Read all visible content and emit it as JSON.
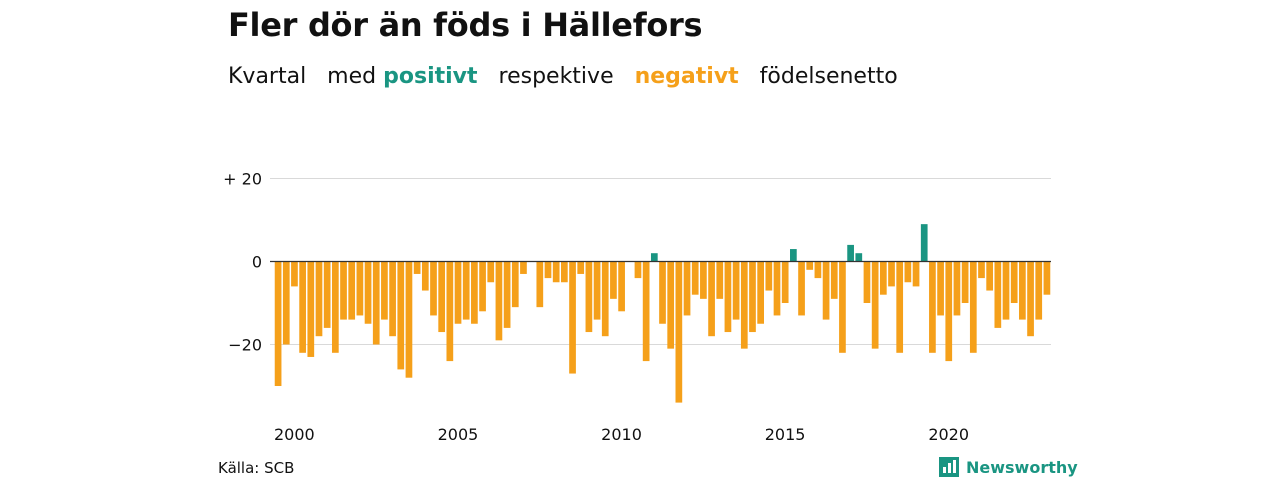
{
  "title": "Fler dör än föds i Hällefors",
  "subtitle": {
    "part1": "Kvartal   med ",
    "positive": "positivt",
    "part2": "   respektive   ",
    "negative": "negativt",
    "part3": "   födelsenetto"
  },
  "source": "Källa: SCB",
  "brand": "Newsworthy",
  "colors": {
    "positive": "#1a9582",
    "negative": "#f5a01a",
    "grid": "#d9d9d9",
    "zero": "#333333"
  },
  "chart_data": {
    "type": "bar",
    "title": "Fler dör än föds i Hällefors",
    "xlabel": "",
    "ylabel": "",
    "ylim": [
      -35,
      20
    ],
    "y_ticks": [
      {
        "value": 20,
        "label": "+ 20"
      },
      {
        "value": 0,
        "label": "0"
      },
      {
        "value": -20,
        "label": "−20"
      }
    ],
    "x_tick_labels": [
      {
        "year": 2000,
        "label": "2000"
      },
      {
        "year": 2005,
        "label": "2005"
      },
      {
        "year": 2010,
        "label": "2010"
      },
      {
        "year": 2015,
        "label": "2015"
      },
      {
        "year": 2020,
        "label": "2020"
      }
    ],
    "first_quarter": "2000Q1",
    "grid": true,
    "values": [
      -30,
      -20,
      -6,
      -22,
      -23,
      -18,
      -16,
      -22,
      -14,
      -14,
      -13,
      -15,
      -20,
      -14,
      -18,
      -26,
      -28,
      -3,
      -7,
      -13,
      -17,
      -24,
      -15,
      -14,
      -15,
      -12,
      -5,
      -19,
      -16,
      -11,
      -3,
      0,
      -11,
      -4,
      -5,
      -5,
      -27,
      -3,
      -17,
      -14,
      -18,
      -9,
      -12,
      0,
      -4,
      -24,
      2,
      -15,
      -21,
      -34,
      -13,
      -8,
      -9,
      -18,
      -9,
      -17,
      -14,
      -21,
      -17,
      -15,
      -7,
      -13,
      -10,
      3,
      -13,
      -2,
      -4,
      -14,
      -9,
      -22,
      4,
      2,
      -10,
      -21,
      -8,
      -6,
      -22,
      -5,
      -6,
      9,
      -22,
      -13,
      -24,
      -13,
      -10,
      -22,
      -4,
      -7,
      -16,
      -14,
      -10,
      -14,
      -18,
      -14,
      -8
    ]
  }
}
